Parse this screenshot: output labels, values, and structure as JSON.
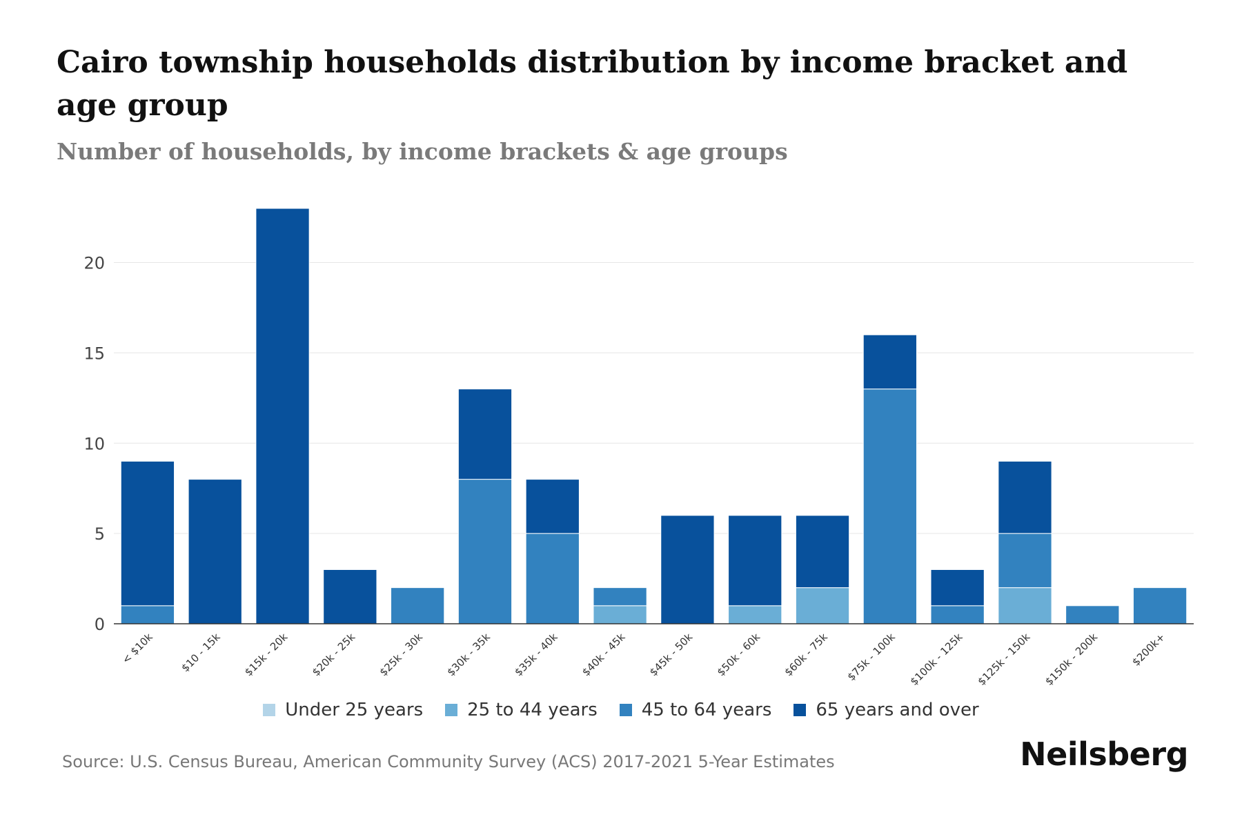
{
  "header": {
    "title": "Cairo township households distribution by income bracket and age group",
    "subtitle": "Number of households, by income brackets & age groups"
  },
  "footer": {
    "source": "Source: U.S. Census Bureau, American Community Survey (ACS) 2017-2021 5-Year Estimates",
    "brand": "Neilsberg"
  },
  "colors": {
    "under_25": "#b3d4e8",
    "age_25_44": "#6aaed6",
    "age_45_64": "#3282bf",
    "age_65_plus": "#08519c",
    "grid": "#e6e6e6",
    "axis": "#333333"
  },
  "chart_data": {
    "type": "bar",
    "stacked": true,
    "title": "Cairo township households distribution by income bracket and age group",
    "subtitle": "Number of households, by income brackets & age groups",
    "xlabel": "",
    "ylabel": "",
    "ylim": [
      0,
      23
    ],
    "yticks": [
      0,
      5,
      10,
      15,
      20
    ],
    "grid": true,
    "legend_position": "bottom",
    "categories": [
      "< $10k",
      "$10 - 15k",
      "$15k - 20k",
      "$20k - 25k",
      "$25k - 30k",
      "$30k - 35k",
      "$35k - 40k",
      "$40k - 45k",
      "$45k - 50k",
      "$50k - 60k",
      "$60k - 75k",
      "$75k - 100k",
      "$100k - 125k",
      "$125k - 150k",
      "$150k - 200k",
      "$200k+"
    ],
    "series": [
      {
        "name": "Under 25 years",
        "color": "#b3d4e8",
        "values": [
          0,
          0,
          0,
          0,
          0,
          0,
          0,
          0,
          0,
          0,
          0,
          0,
          0,
          0,
          0,
          0
        ]
      },
      {
        "name": "25 to 44 years",
        "color": "#6aaed6",
        "values": [
          0,
          0,
          0,
          0,
          0,
          0,
          0,
          1,
          0,
          1,
          2,
          0,
          0,
          2,
          0,
          0
        ]
      },
      {
        "name": "45 to 64 years",
        "color": "#3282bf",
        "values": [
          1,
          0,
          0,
          0,
          2,
          8,
          5,
          1,
          0,
          0,
          0,
          13,
          1,
          3,
          1,
          2
        ]
      },
      {
        "name": "65 years and over",
        "color": "#08519c",
        "values": [
          8,
          8,
          23,
          3,
          0,
          5,
          3,
          0,
          6,
          5,
          4,
          3,
          2,
          4,
          0,
          0
        ]
      }
    ]
  }
}
